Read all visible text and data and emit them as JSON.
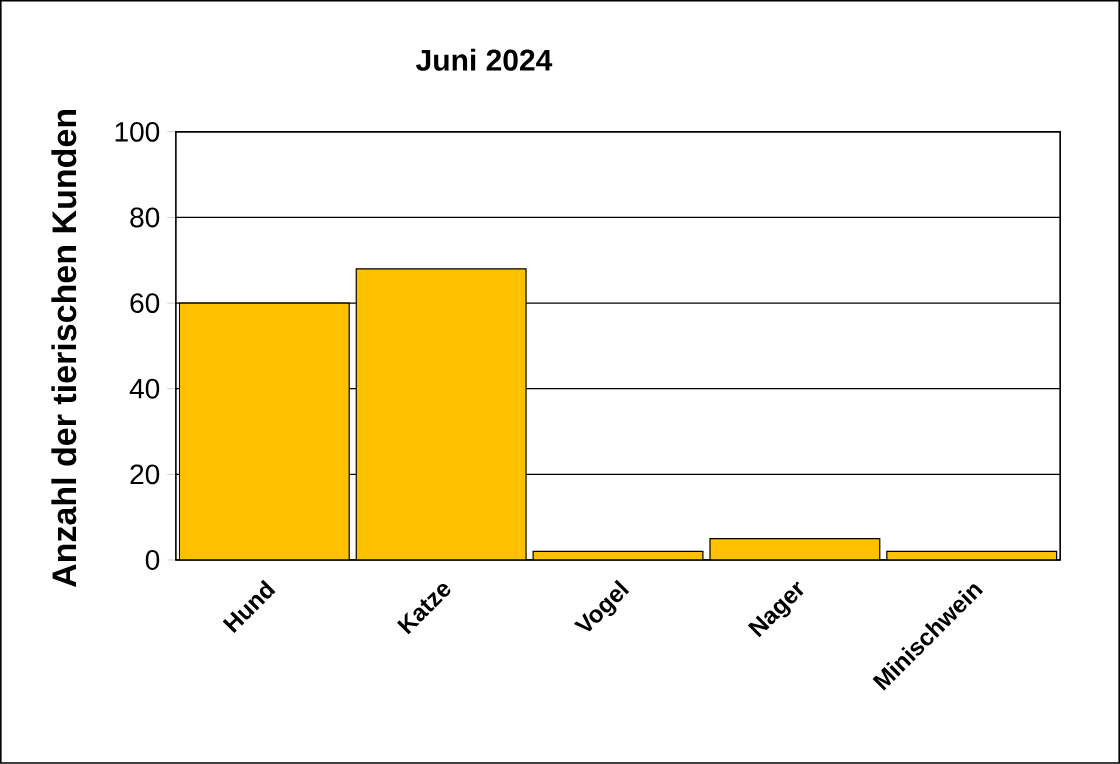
{
  "chart_data": {
    "type": "bar",
    "title": "Juni 2024",
    "ylabel": "Anzahl der tierischen Kunden",
    "categories": [
      "Hund",
      "Katze",
      "Vogel",
      "Nager",
      "Minischwein"
    ],
    "values": [
      60,
      68,
      2,
      5,
      2
    ],
    "color": "#ffc000",
    "ylim": [
      0,
      100
    ],
    "yticks": [
      0,
      20,
      40,
      60,
      80,
      100
    ],
    "grid": "y"
  }
}
